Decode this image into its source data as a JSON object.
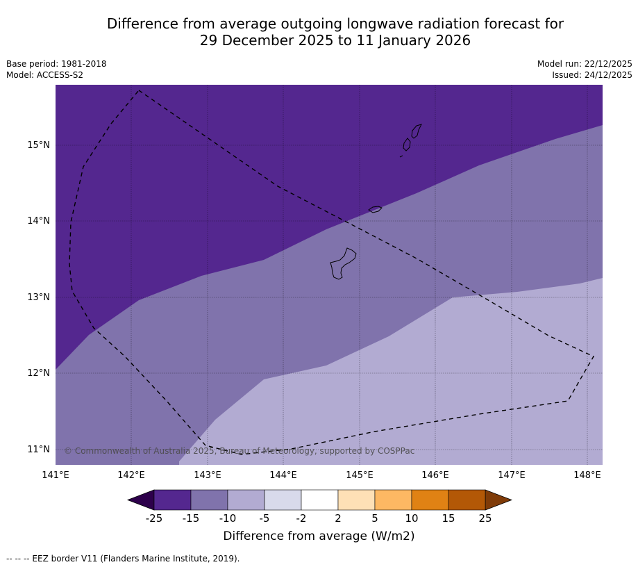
{
  "title_line1": "Difference from average outgoing longwave radiation forecast for",
  "title_line2": "29 December 2025 to 11 January 2026",
  "meta": {
    "base_period": "Base period: 1981-2018",
    "model": "Model: ACCESS-S2",
    "model_run": "Model run: 22/12/2025",
    "issued": "Issued: 24/12/2025"
  },
  "map": {
    "lat_labels": [
      "15°N",
      "14°N",
      "13°N",
      "12°N",
      "11°N"
    ],
    "lon_labels": [
      "141°E",
      "142°E",
      "143°E",
      "144°E",
      "145°E",
      "146°E",
      "147°E",
      "148°E"
    ],
    "copyright": "© Commonwealth of Australia 2025, Bureau of Meteorology, supported by COSPPac",
    "lon_range": [
      141,
      148.2
    ],
    "lat_range": [
      10.8,
      15.8
    ]
  },
  "colorbar": {
    "ticks": [
      "-25",
      "-15",
      "-10",
      "-5",
      "-2",
      "2",
      "5",
      "10",
      "15",
      "25"
    ],
    "colors": [
      "#54278f",
      "#8073ac",
      "#b2abd2",
      "#d8daeb",
      "#ffffff",
      "#fee0b6",
      "#fdb863",
      "#e08214",
      "#b35806"
    ],
    "under_color": "#2d004b",
    "over_color": "#7f3b08",
    "label": "Difference from average (W/m2)"
  },
  "footnote": "--  --  -- EEZ border V11 (Flanders Marine Institute, 2019)."
}
